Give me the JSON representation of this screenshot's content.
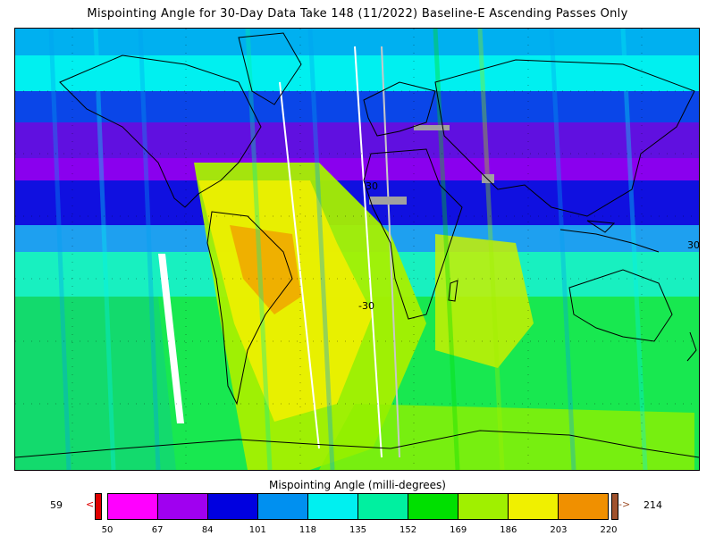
{
  "title": "Mispointing Angle for 30-Day Data Take 148 (11/2022) Baseline-E Ascending Passes Only",
  "map": {
    "lat_labels": [
      "-30",
      "30"
    ],
    "lon_label": "30"
  },
  "colorbar": {
    "title": "Mispointing Angle (milli-degrees)",
    "min_value": "59",
    "max_value": "214",
    "under_arrow": "<",
    "over_arrow": "->",
    "ticks": [
      "50",
      "67",
      "84",
      "101",
      "118",
      "135",
      "152",
      "169",
      "186",
      "203",
      "220"
    ],
    "colors": [
      "#ff00ff",
      "#a000f0",
      "#0000e0",
      "#0090f0",
      "#00f0f0",
      "#00f0a0",
      "#00e000",
      "#a0f000",
      "#f0f000",
      "#f09000"
    ],
    "under_color": "#e00000",
    "over_color": "#a0522d"
  }
}
